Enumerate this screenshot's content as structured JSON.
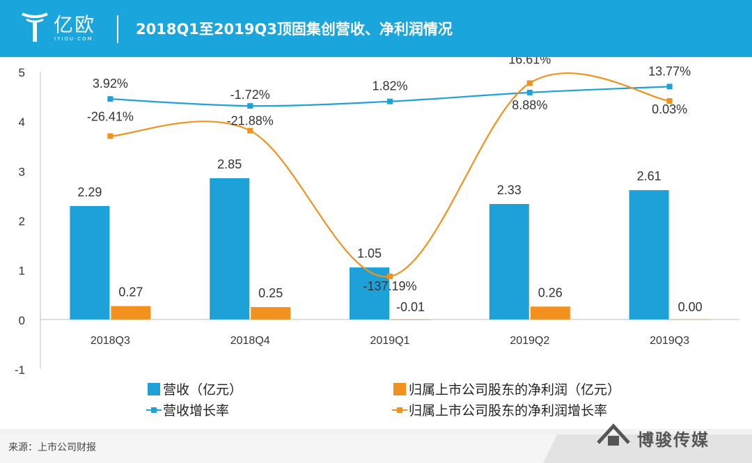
{
  "header": {
    "brand_name": "亿欧",
    "brand_sub": "IYIOU·COM",
    "title": "2018Q1至2019Q3顶固集创营收、净利润情况"
  },
  "footer": {
    "source": "来源：上市公司财报",
    "brand": "博骏传媒"
  },
  "colors": {
    "header": "#1aa6dd",
    "bar_revenue": "#1ea0d8",
    "bar_profit": "#f2911e",
    "line_revenue": "#1ea0d8",
    "line_profit": "#f2911e"
  },
  "chart_data": {
    "type": "bar",
    "categories": [
      "2018Q3",
      "2018Q4",
      "2019Q1",
      "2019Q2",
      "2019Q3"
    ],
    "ylim": [
      -1,
      5
    ],
    "yticks": [
      "5",
      "4",
      "3",
      "2",
      "1",
      "0",
      "-1"
    ],
    "ytick_values": [
      5,
      4,
      3,
      2,
      1,
      0,
      -1
    ],
    "series": [
      {
        "name": "营收（亿元）",
        "kind": "bar",
        "values": [
          2.29,
          2.85,
          1.05,
          2.33,
          2.61
        ],
        "labels": [
          "2.29",
          "2.85",
          "1.05",
          "2.33",
          "2.61"
        ]
      },
      {
        "name": "归属上市公司股东的净利润（亿元）",
        "kind": "bar",
        "values": [
          0.27,
          0.25,
          -0.01,
          0.26,
          0.0
        ],
        "labels": [
          "0.27",
          "0.25",
          "-0.01",
          "0.26",
          "0.00"
        ]
      },
      {
        "name": "营收增长率",
        "kind": "line",
        "values": [
          3.92,
          -1.72,
          1.82,
          8.88,
          13.77
        ],
        "labels": [
          "3.92%",
          "-1.72%",
          "1.82%",
          "8.88%",
          "13.77%"
        ],
        "plot_y": [
          4.45,
          4.31,
          4.4,
          4.58,
          4.7
        ]
      },
      {
        "name": "归属上市公司股东的净利润增长率",
        "kind": "line",
        "values": [
          -26.41,
          -21.88,
          -137.19,
          16.61,
          0.03
        ],
        "labels": [
          "-26.41%",
          "-21.88%",
          "-137.19%",
          "16.61%",
          "0.03%"
        ],
        "plot_y": [
          3.7,
          3.81,
          0.87,
          4.77,
          4.41
        ]
      }
    ],
    "legend_position": "bottom",
    "grid": false
  }
}
